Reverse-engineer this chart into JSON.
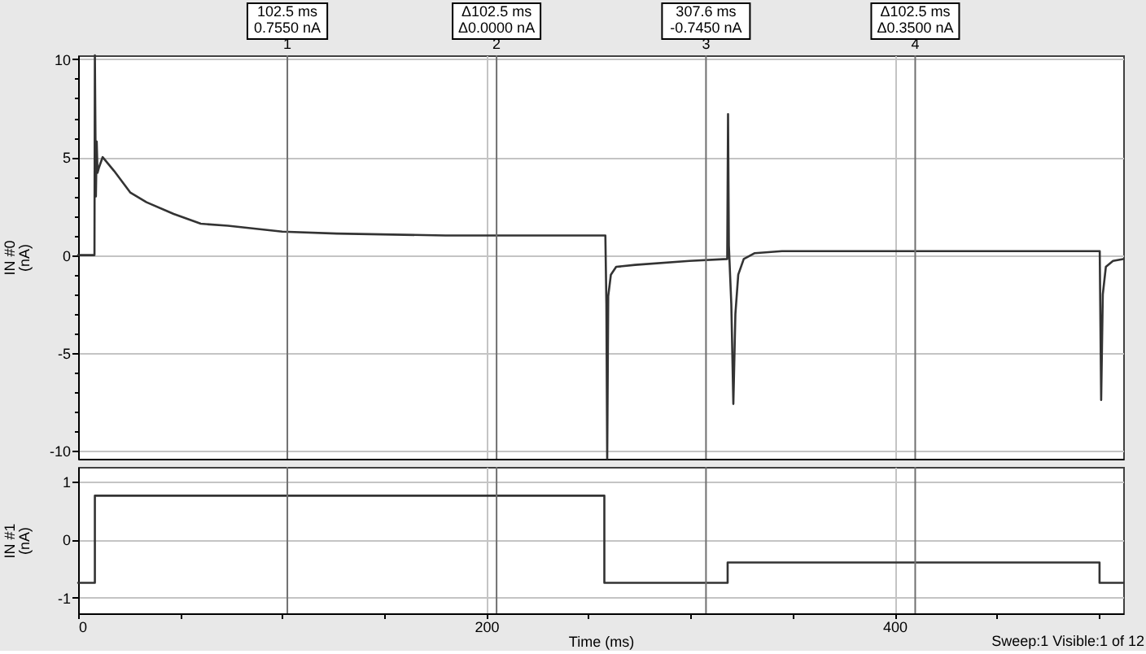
{
  "chart_data": [
    {
      "type": "line",
      "ylabel": "IN #0\n(nA)",
      "x": [
        0,
        8.0,
        8.2,
        8.7,
        9.1,
        9.5,
        10.3,
        12.0,
        17.6,
        25.5,
        33.5,
        46.8,
        60.1,
        73.4,
        100,
        126.6,
        180,
        220,
        258.3,
        258.8,
        259.2,
        259.7,
        261,
        263.6,
        272.9,
        299.5,
        318.0,
        318.4,
        318.8,
        320,
        321,
        322,
        323.4,
        326.1,
        331.5,
        344.8,
        400,
        450,
        500.5,
        501.2,
        502,
        503.5,
        507,
        512
      ],
      "values": [
        0,
        0,
        10.2,
        3.0,
        5.8,
        4.2,
        4.5,
        5.0,
        4.3,
        3.2,
        2.7,
        2.1,
        1.6,
        1.5,
        1.2,
        1.1,
        1.0,
        1.0,
        1.0,
        -2.5,
        -10.4,
        -2.1,
        -1.0,
        -0.6,
        -0.5,
        -0.3,
        -0.2,
        7.2,
        0.5,
        -2.5,
        -7.6,
        -3.0,
        -1.0,
        -0.2,
        0.1,
        0.2,
        0.2,
        0.2,
        0.2,
        -7.4,
        -2.0,
        -0.6,
        -0.3,
        -0.2
      ],
      "color": "#333333",
      "xlim": [
        0,
        512
      ],
      "xticks": [
        0,
        200,
        400
      ],
      "ylim": [
        -10.4,
        10.2
      ],
      "yticks": [
        -10,
        {
          "value": -9,
          "label": null
        },
        {
          "value": -8,
          "label": null
        },
        {
          "value": -7,
          "label": null
        },
        {
          "value": -6,
          "label": null
        },
        -5,
        {
          "value": -4,
          "label": null
        },
        {
          "value": -3,
          "label": null
        },
        {
          "value": -2,
          "label": null
        },
        {
          "value": -1,
          "label": null
        },
        0,
        {
          "value": 1,
          "label": null
        },
        {
          "value": 2,
          "label": null
        },
        {
          "value": 3,
          "label": null
        },
        {
          "value": 4,
          "label": null
        },
        5,
        {
          "value": 6,
          "label": null
        },
        {
          "value": 7,
          "label": null
        },
        {
          "value": 8,
          "label": null
        },
        {
          "value": 9,
          "label": null
        },
        10
      ],
      "grid": true,
      "tick_labels": "y",
      "ref_lines": [
        {
          "axis": "x",
          "value": 102.5,
          "label": "102.5 ms\n0.7550 nA\n1",
          "color": "#707070"
        },
        {
          "axis": "x",
          "value": 205.0,
          "label": "Δ102.5 ms\nΔ0.0000 nA\n2",
          "color": "#707070"
        },
        {
          "axis": "x",
          "value": 307.6,
          "label": "307.6 ms\n-0.7450 nA\n3",
          "color": "#707070"
        },
        {
          "axis": "x",
          "value": 410.1,
          "label": "Δ102.5 ms\nΔ0.3500 nA\n4",
          "color": "#707070"
        }
      ]
    },
    {
      "type": "step",
      "xlabel": "Time (ms)",
      "ylabel": "IN #1\n(nA)",
      "x": [
        0,
        8.2,
        257.8,
        318.2,
        500.4,
        512
      ],
      "values": [
        -0.745,
        0.755,
        -0.745,
        -0.395,
        -0.745,
        -0.745
      ],
      "color": "#333333",
      "xlim": [
        0,
        512
      ],
      "xticks": [
        0,
        {
          "value": 50,
          "label": null
        },
        {
          "value": 100,
          "label": null
        },
        {
          "value": 150,
          "label": null
        },
        200,
        {
          "value": 250,
          "label": null
        },
        {
          "value": 300,
          "label": null
        },
        {
          "value": 350,
          "label": null
        },
        400,
        {
          "value": 450,
          "label": null
        },
        {
          "value": 500,
          "label": null
        }
      ],
      "ylim": [
        -1.27,
        1.25
      ],
      "yticks": [
        -1,
        0,
        1
      ],
      "grid": true,
      "ref_lines": [
        {
          "axis": "x",
          "value": 102.5,
          "color": "#707070"
        },
        {
          "axis": "x",
          "value": 205.0,
          "color": "#707070"
        },
        {
          "axis": "x",
          "value": 307.6,
          "color": "#707070"
        },
        {
          "axis": "x",
          "value": 410.1,
          "color": "#707070"
        }
      ],
      "annotations": [
        "Sweep:1 Visible:1 of 12"
      ]
    }
  ]
}
